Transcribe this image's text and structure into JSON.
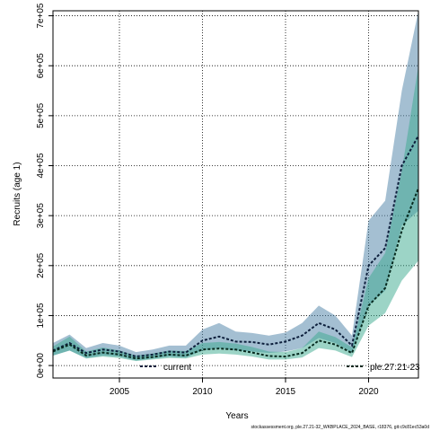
{
  "chart_data": {
    "type": "area",
    "xlabel": "Years",
    "ylabel": "Recruits (age 1)",
    "xlim": [
      2001,
      2023
    ],
    "ylim": [
      -25000,
      710000
    ],
    "x_ticks": [
      2005,
      2010,
      2015,
      2020
    ],
    "x_tick_labels": [
      "2005",
      "2010",
      "2015",
      "2020"
    ],
    "y_ticks": [
      0,
      100000,
      200000,
      300000,
      400000,
      500000,
      600000,
      700000
    ],
    "y_tick_labels": [
      "0e+00",
      "1e+05",
      "2e+05",
      "3e+05",
      "4e+05",
      "5e+05",
      "6e+05",
      "7e+05"
    ],
    "grid": true,
    "legend_placement": "bottom",
    "x": [
      2001,
      2002,
      2003,
      2004,
      2005,
      2006,
      2007,
      2008,
      2009,
      2010,
      2011,
      2012,
      2013,
      2014,
      2015,
      2016,
      2017,
      2018,
      2019,
      2020,
      2021,
      2022,
      2023
    ],
    "series": [
      {
        "name": "current",
        "color": "#4a7fa6",
        "line_color": "#0d1f3c",
        "values": [
          30000,
          45000,
          25000,
          32000,
          28000,
          18000,
          22000,
          28000,
          26000,
          50000,
          58000,
          48000,
          47000,
          42000,
          48000,
          60000,
          85000,
          72000,
          40000,
          200000,
          235000,
          400000,
          460000
        ],
        "lower": [
          20000,
          30000,
          15000,
          20000,
          18000,
          10000,
          14000,
          18000,
          16000,
          30000,
          35000,
          30000,
          28000,
          25000,
          28000,
          35000,
          55000,
          45000,
          25000,
          120000,
          150000,
          280000,
          310000
        ],
        "upper": [
          45000,
          62000,
          35000,
          45000,
          40000,
          27000,
          32000,
          40000,
          40000,
          72000,
          85000,
          68000,
          65000,
          60000,
          66000,
          85000,
          120000,
          100000,
          60000,
          290000,
          330000,
          550000,
          710000
        ]
      },
      {
        "name": "ple.27.21-23",
        "color": "#3aa98e",
        "line_color": "#062a1f",
        "values": [
          28000,
          42000,
          20000,
          26000,
          22000,
          14000,
          17000,
          22000,
          20000,
          32000,
          34000,
          32000,
          26000,
          19000,
          18000,
          25000,
          50000,
          42000,
          25000,
          120000,
          155000,
          270000,
          355000
        ],
        "lower": [
          20000,
          30000,
          14000,
          18000,
          15000,
          9000,
          12000,
          15000,
          14000,
          22000,
          24000,
          22000,
          18000,
          12000,
          12000,
          16000,
          35000,
          30000,
          17000,
          80000,
          105000,
          170000,
          210000
        ],
        "upper": [
          38000,
          58000,
          28000,
          36000,
          30000,
          20000,
          24000,
          30000,
          29000,
          45000,
          47000,
          44000,
          37000,
          28000,
          27000,
          35000,
          68000,
          57000,
          36000,
          175000,
          225000,
          390000,
          600000
        ]
      }
    ],
    "footer": "stockassessment.org, ple.27.21-32_WKBPLACE_2024_BASE, r18376, git:c9c81ec53a0d"
  }
}
